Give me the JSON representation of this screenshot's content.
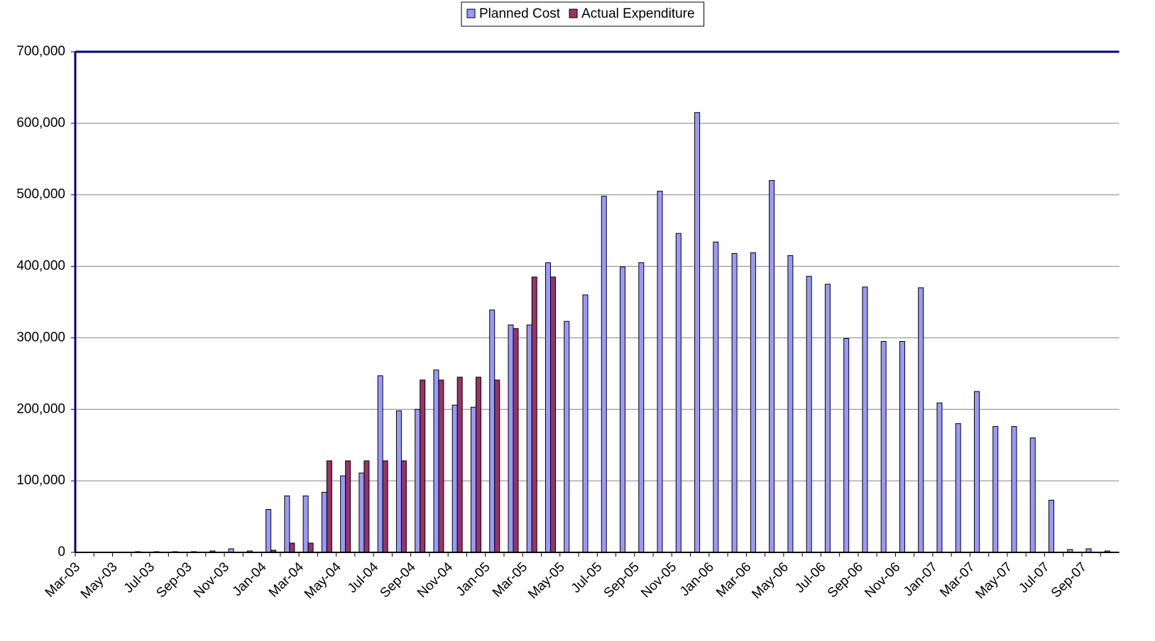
{
  "chart_data": {
    "type": "bar",
    "categories": [
      "Mar-03",
      null,
      "May-03",
      null,
      "Jul-03",
      null,
      "Sep-03",
      null,
      "Nov-03",
      null,
      "Jan-04",
      null,
      "Mar-04",
      null,
      "May-04",
      null,
      "Jul-04",
      null,
      "Sep-04",
      null,
      "Nov-04",
      null,
      "Jan-05",
      null,
      "Mar-05",
      null,
      "May-05",
      null,
      "Jul-05",
      null,
      "Sep-05",
      null,
      "Nov-05",
      null,
      "Jan-06",
      null,
      "Mar-06",
      null,
      "May-06",
      null,
      "Jul-06",
      null,
      "Sep-06",
      null,
      "Nov-06",
      null,
      "Jan-07",
      null,
      "Mar-07",
      null,
      "May-07",
      null,
      "Jul-07",
      null,
      "Sep-07",
      null
    ],
    "series": [
      {
        "name": "Planned Cost",
        "color": "#9999ff",
        "values": [
          0,
          0,
          0,
          1000,
          1000,
          1000,
          1000,
          2000,
          5000,
          2000,
          60000,
          79000,
          79000,
          84000,
          107000,
          111000,
          247000,
          198000,
          200000,
          255000,
          206000,
          203000,
          339000,
          318000,
          318000,
          405000,
          323000,
          360000,
          498000,
          399000,
          405000,
          505000,
          446000,
          615000,
          434000,
          418000,
          419000,
          520000,
          415000,
          386000,
          375000,
          299000,
          371000,
          295000,
          295000,
          370000,
          209000,
          180000,
          225000,
          176000,
          176000,
          160000,
          73000,
          4000,
          5000,
          2000
        ]
      },
      {
        "name": "Actual Expenditure",
        "color": "#993366",
        "values": [
          0,
          0,
          0,
          0,
          0,
          0,
          0,
          0,
          0,
          0,
          3000,
          13000,
          13000,
          128000,
          128000,
          128000,
          128000,
          128000,
          241000,
          241000,
          245000,
          245000,
          241000,
          313000,
          385000,
          385000,
          0,
          0,
          0,
          0,
          0,
          0,
          0,
          0,
          0,
          0,
          0,
          0,
          0,
          0,
          0,
          0,
          0,
          0,
          0,
          0,
          0,
          0,
          0,
          0,
          0,
          0,
          0,
          0,
          0,
          0
        ]
      }
    ],
    "ylim": [
      0,
      700000
    ],
    "yticks": [
      0,
      {
        "value": 100000,
        "label": "100,000"
      },
      {
        "value": 200000,
        "label": "200,000"
      },
      {
        "value": 300000,
        "label": "300,000"
      },
      {
        "value": 400000,
        "label": "400,000"
      },
      {
        "value": 500000,
        "label": "500,000"
      },
      {
        "value": 600000,
        "label": "600,000"
      },
      {
        "value": 700000,
        "label": "700,000"
      }
    ],
    "grid": true,
    "legend": "top"
  }
}
